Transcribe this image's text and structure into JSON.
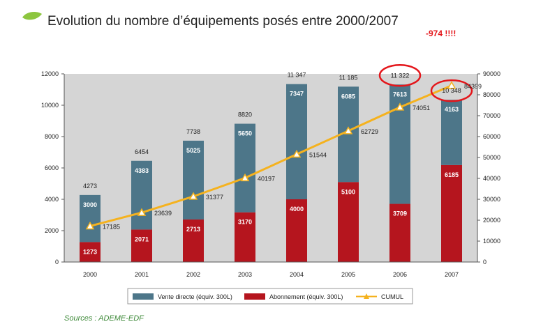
{
  "header": {
    "title": "Evolution du nombre d’équipements posés entre 2000/2007",
    "annotation": "-974 !!!!"
  },
  "source": "Sources : ADEME-EDF",
  "colors": {
    "vente": "#4d7689",
    "abonnement": "#b5151e",
    "cumul": "#f5b21e",
    "plot_bg": "#d5d5d5",
    "leaf": "#8dc63f",
    "annotation": "#e4161b",
    "circle": "#e4161b",
    "source_text": "#3f8a3a"
  },
  "chart_data": {
    "type": "bar",
    "stacked": true,
    "categories": [
      "2000",
      "2001",
      "2002",
      "2003",
      "2004",
      "2005",
      "2006",
      "2007"
    ],
    "series": [
      {
        "name": "Abonnement (équiv. 300L)",
        "axis": "left",
        "values": [
          1273,
          2071,
          2713,
          3170,
          4000,
          5100,
          3709,
          6185
        ]
      },
      {
        "name": "Vente directe (équiv. 300L)",
        "axis": "left",
        "values": [
          3000,
          4383,
          5025,
          5650,
          7347,
          6085,
          7613,
          4163
        ]
      },
      {
        "name": "CUMUL",
        "axis": "right",
        "type": "line",
        "values": [
          17185,
          23639,
          31377,
          40197,
          51544,
          62729,
          74051,
          84399
        ]
      }
    ],
    "value_labels": {
      "abonnement": [
        "1273",
        "2071",
        "2713",
        "3170",
        "4000",
        "5100",
        "3709",
        "6185"
      ],
      "vente": [
        "3000",
        "4383",
        "5025",
        "5650",
        "7347",
        "6085",
        "7613",
        "4163"
      ],
      "cumul": [
        "17185",
        "23639",
        "31377",
        "40197",
        "51544",
        "62729",
        "74051",
        "84399"
      ]
    },
    "totals": [
      "4273",
      "6454",
      "7738",
      "8820",
      "11 347",
      "11 185",
      "11 322",
      "10 348"
    ],
    "circled_totals": [
      6,
      7
    ],
    "ylim": [
      0,
      12000
    ],
    "y_ticks": [
      "0",
      "2000",
      "4000",
      "6000",
      "8000",
      "10000",
      "12000"
    ],
    "y2lim": [
      0,
      90000
    ],
    "y2_ticks": [
      "0",
      "10000",
      "20000",
      "30000",
      "40000",
      "50000",
      "60000",
      "70000",
      "80000",
      "90000"
    ],
    "grid": false,
    "legend": {
      "position": "bottom",
      "entries": [
        "Vente directe (équiv. 300L)",
        "Abonnement (équiv. 300L)",
        "CUMUL"
      ]
    }
  }
}
